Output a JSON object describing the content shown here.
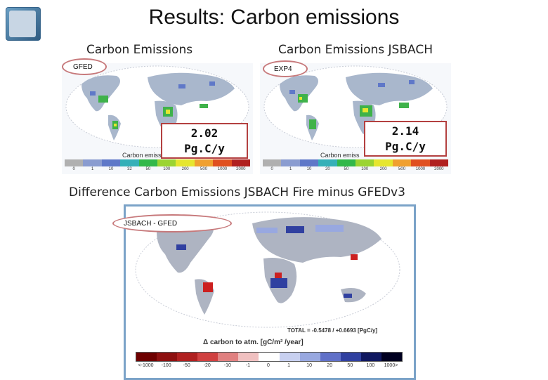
{
  "slide": {
    "title": "Results: Carbon emissions",
    "left_heading": "Carbon Emissions",
    "right_heading": "Carbon Emissions JSBACH",
    "diff_heading": "Difference Carbon Emissions JSBACH Fire minus GFEDv3"
  },
  "left_panel": {
    "tag": "GFED",
    "value": "2.02",
    "unit": "Pg.C/y",
    "caption": "Carbon emiss",
    "scale_ticks": [
      "0",
      "1",
      "10",
      "32",
      "50",
      "100",
      "200",
      "500",
      "1000",
      "2000"
    ]
  },
  "right_panel": {
    "tag": "EXP4",
    "value": "2.14",
    "unit": "Pg.C/y",
    "caption": "Carbon emiss",
    "scale_ticks": [
      "0",
      "1",
      "10",
      "20",
      "50",
      "100",
      "200",
      "500",
      "1000",
      "2000"
    ]
  },
  "bottom_panel": {
    "tag": "JSBACH - GFED",
    "total": "TOTAL = -0.5478 / +0.6693 [PgC/y]",
    "caption": "Δ carbon to atm. [gC/m² /year]",
    "scale_ticks": [
      "<-1000",
      "-100",
      "-50",
      "-20",
      "-10",
      "-1",
      "0",
      "1",
      "10",
      "20",
      "50",
      "100",
      "1000>"
    ]
  },
  "colors": {
    "callout_border": "#b34040",
    "oval_border": "#c7797b",
    "frame_border": "#7ba3c8",
    "emission_scale": [
      "#b0b0b0",
      "#8a9cd0",
      "#5f78c8",
      "#35b0b8",
      "#32b84a",
      "#9bd432",
      "#e6e630",
      "#f0a030",
      "#e05020",
      "#b02020"
    ],
    "diff_scale": [
      "#6e0000",
      "#8e1010",
      "#b02020",
      "#d04040",
      "#e08080",
      "#f0c0c0",
      "#ffffff",
      "#c8d0f0",
      "#98a8e0",
      "#6070c8",
      "#3040a0",
      "#101860",
      "#000020"
    ]
  }
}
